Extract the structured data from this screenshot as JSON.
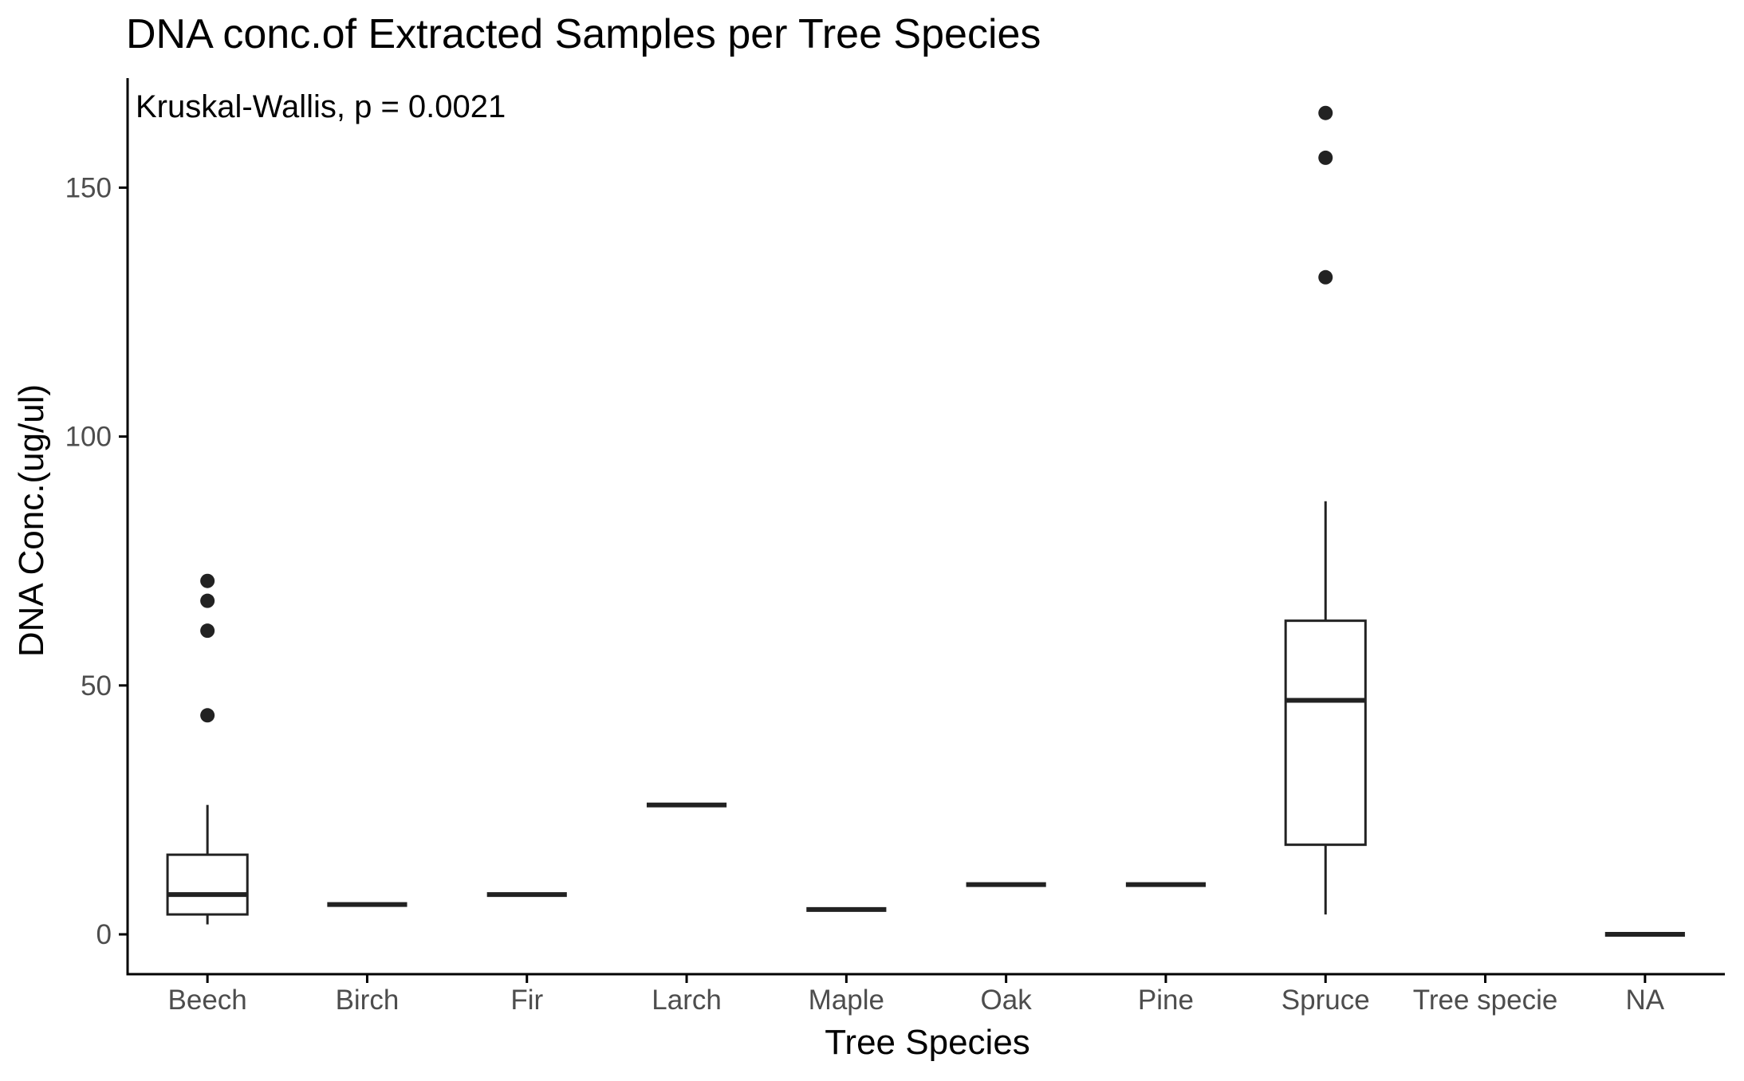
{
  "chart_data": {
    "type": "box",
    "title": "DNA conc.of Extracted Samples per Tree Species",
    "annotation": "Kruskal-Wallis, p = 0.0021",
    "xlabel": "Tree Species",
    "ylabel": "DNA Conc.(ug/ul)",
    "ylim": [
      -8,
      172
    ],
    "yticks": [
      0,
      50,
      100,
      150
    ],
    "grid": false,
    "legend": "none",
    "categories": [
      "Beech",
      "Birch",
      "Fir",
      "Larch",
      "Maple",
      "Oak",
      "Pine",
      "Spruce",
      "Tree specie",
      "NA"
    ],
    "boxes": [
      {
        "category": "Beech",
        "whisker_low": 2,
        "q1": 4,
        "median": 8,
        "q3": 16,
        "whisker_high": 26,
        "outliers": [
          44,
          61,
          67,
          71
        ]
      },
      {
        "category": "Birch",
        "whisker_low": 6,
        "q1": 6,
        "median": 6,
        "q3": 6,
        "whisker_high": 6,
        "outliers": []
      },
      {
        "category": "Fir",
        "whisker_low": 8,
        "q1": 8,
        "median": 8,
        "q3": 8,
        "whisker_high": 8,
        "outliers": []
      },
      {
        "category": "Larch",
        "whisker_low": 26,
        "q1": 26,
        "median": 26,
        "q3": 26,
        "whisker_high": 26,
        "outliers": []
      },
      {
        "category": "Maple",
        "whisker_low": 5,
        "q1": 5,
        "median": 5,
        "q3": 5,
        "whisker_high": 5,
        "outliers": []
      },
      {
        "category": "Oak",
        "whisker_low": 10,
        "q1": 10,
        "median": 10,
        "q3": 10,
        "whisker_high": 10,
        "outliers": []
      },
      {
        "category": "Pine",
        "whisker_low": 10,
        "q1": 10,
        "median": 10,
        "q3": 10,
        "whisker_high": 10,
        "outliers": []
      },
      {
        "category": "Spruce",
        "whisker_low": 4,
        "q1": 18,
        "median": 47,
        "q3": 63,
        "whisker_high": 87,
        "outliers": [
          132,
          156,
          165
        ]
      },
      {
        "category": "Tree specie",
        "whisker_low": null,
        "q1": null,
        "median": null,
        "q3": null,
        "whisker_high": null,
        "outliers": []
      },
      {
        "category": "NA",
        "whisker_low": 0,
        "q1": 0,
        "median": 0,
        "q3": 0,
        "whisker_high": 0,
        "outliers": []
      }
    ],
    "colors": {
      "box_stroke": "#222222",
      "box_fill": "#ffffff",
      "outlier": "#222222",
      "axis": "#000000",
      "tick_label": "#4d4d4d"
    }
  }
}
